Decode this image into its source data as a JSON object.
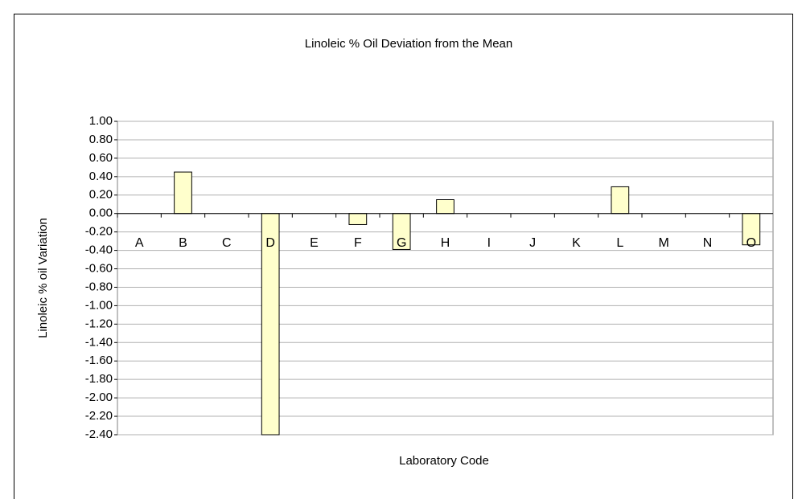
{
  "chart_data": {
    "type": "bar",
    "title": "Linoleic % Oil Deviation from the Mean",
    "x_label": "Laboratory Code",
    "y_label": "Linoleic % oil Variation",
    "categories": [
      "A",
      "B",
      "C",
      "D",
      "E",
      "F",
      "G",
      "H",
      "I",
      "J",
      "K",
      "L",
      "M",
      "N",
      "O"
    ],
    "values": [
      0,
      0.45,
      0,
      -2.4,
      0,
      -0.12,
      -0.39,
      0.15,
      0,
      0,
      0,
      0.29,
      0,
      0,
      -0.34
    ],
    "color": "#ffffcc",
    "ylim": [
      -2.4,
      1.0
    ],
    "yticks": [
      {
        "value": 1.0,
        "label": "1.00"
      },
      {
        "value": 0.8,
        "label": "0.80"
      },
      {
        "value": 0.6,
        "label": "0.60"
      },
      {
        "value": 0.4,
        "label": "0.40"
      },
      {
        "value": 0.2,
        "label": "0.20"
      },
      {
        "value": 0,
        "label": "0.00"
      },
      {
        "value": -0.2,
        "label": "-0.20"
      },
      {
        "value": -0.4,
        "label": "-0.40"
      },
      {
        "value": -0.6,
        "label": "-0.60"
      },
      {
        "value": -0.8,
        "label": "-0.80"
      },
      {
        "value": -1.0,
        "label": "-1.00"
      },
      {
        "value": -1.2,
        "label": "-1.20"
      },
      {
        "value": -1.4,
        "label": "-1.40"
      },
      {
        "value": -1.6,
        "label": "-1.60"
      },
      {
        "value": -1.8,
        "label": "-1.80"
      },
      {
        "value": -2.0,
        "label": "-2.00"
      },
      {
        "value": -2.2,
        "label": "-2.20"
      },
      {
        "value": -2.4,
        "label": "-2.40"
      }
    ],
    "grid": true
  }
}
